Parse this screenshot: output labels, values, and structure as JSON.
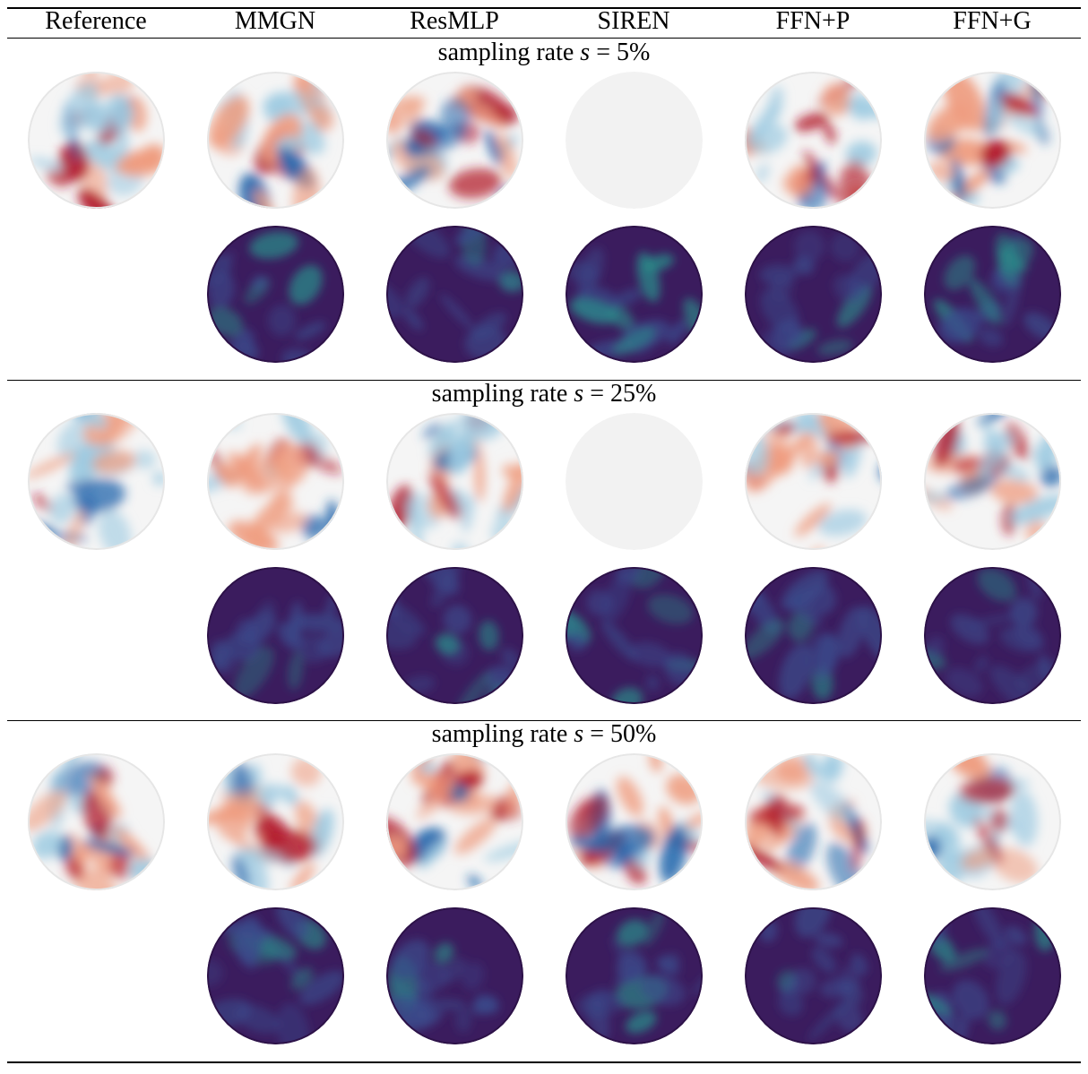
{
  "columns": [
    "Reference",
    "MMGN",
    "ResMLP",
    "SIREN",
    "FFN+P",
    "FFN+G"
  ],
  "sections": [
    {
      "label_prefix": "sampling rate ",
      "variable": "s",
      "label_suffix": " = 5%"
    },
    {
      "label_prefix": "sampling rate ",
      "variable": "s",
      "label_suffix": " = 25%"
    },
    {
      "label_prefix": "sampling rate ",
      "variable": "s",
      "label_suffix": " = 50%"
    }
  ],
  "colors": {
    "red": "#b2182b",
    "light_red": "#ef9c7f",
    "white": "#f5f5f5",
    "light_blue": "#9ccae1",
    "blue": "#2166ac",
    "error_bg": "#3b1c5e",
    "error_mid": "#3b4b8c",
    "error_hi": "#2a8d8a"
  }
}
